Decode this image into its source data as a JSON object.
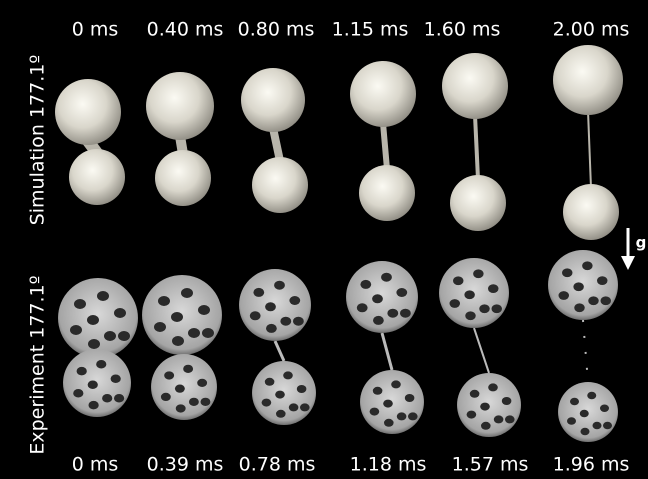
{
  "row_labels": [
    "Simulation 177.1º",
    "Experiment 177.1º"
  ],
  "simulation_times": [
    "0 ms",
    "0.40 ms",
    "0.80 ms",
    "1.15 ms",
    "1.60 ms",
    "2.00 ms"
  ],
  "experiment_times": [
    "0 ms",
    "0.39 ms",
    "0.78 ms",
    "1.18 ms",
    "1.57 ms",
    "1.96 ms"
  ],
  "gravity_label": "g"
}
